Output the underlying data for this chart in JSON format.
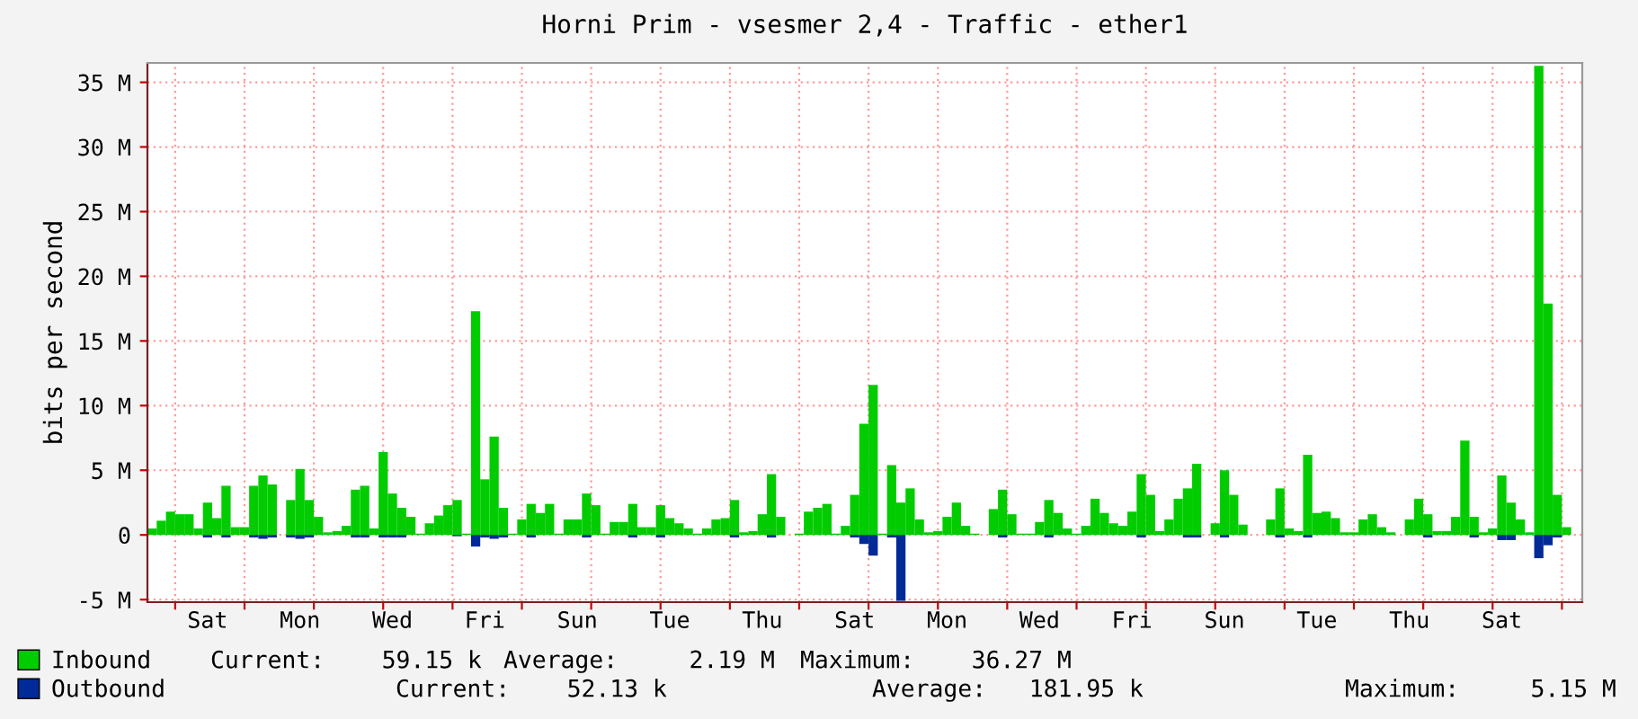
{
  "chart_data": {
    "type": "bar",
    "title": "Horni Prim - vsesmer 2,4 - Traffic - ether1",
    "ylabel": "bits per second",
    "categories": [
      null,
      null,
      null,
      null,
      null,
      null,
      "Sat",
      null,
      null,
      null,
      null,
      null,
      null,
      null,
      null,
      null,
      "Mon",
      null,
      null,
      null,
      null,
      null,
      null,
      null,
      null,
      null,
      "Wed",
      null,
      null,
      null,
      null,
      null,
      null,
      null,
      null,
      null,
      "Fri",
      null,
      null,
      null,
      null,
      null,
      null,
      null,
      null,
      null,
      "Sun",
      null,
      null,
      null,
      null,
      null,
      null,
      null,
      null,
      null,
      "Tue",
      null,
      null,
      null,
      null,
      null,
      null,
      null,
      null,
      null,
      "Thu",
      null,
      null,
      null,
      null,
      null,
      null,
      null,
      null,
      null,
      "Sat",
      null,
      null,
      null,
      null,
      null,
      null,
      null,
      null,
      null,
      "Mon",
      null,
      null,
      null,
      null,
      null,
      null,
      null,
      null,
      null,
      "Wed",
      null,
      null,
      null,
      null,
      null,
      null,
      null,
      null,
      null,
      "Fri",
      null,
      null,
      null,
      null,
      null,
      null,
      null,
      null,
      null,
      "Sun",
      null,
      null,
      null,
      null,
      null,
      null,
      null,
      null,
      null,
      "Tue",
      null,
      null,
      null,
      null,
      null,
      null,
      null,
      null,
      null,
      "Thu",
      null,
      null,
      null,
      null,
      null,
      null,
      null,
      null,
      null,
      "Sat",
      null,
      null,
      null,
      null,
      null,
      null,
      null
    ],
    "series": [
      {
        "name": "Inbound",
        "color": "#00cc00",
        "values": [
          0.5,
          1.1,
          1.8,
          1.6,
          1.6,
          0.5,
          2.5,
          1.3,
          3.8,
          0.6,
          0.6,
          3.8,
          4.6,
          3.9,
          0,
          2.7,
          5.1,
          2.7,
          1.4,
          0.2,
          0.3,
          0.7,
          3.5,
          3.8,
          0.5,
          6.4,
          3.2,
          2.1,
          1.4,
          0.1,
          0.9,
          1.5,
          2.3,
          2.7,
          0.1,
          17.3,
          4.3,
          7.6,
          2.1,
          0.1,
          1.2,
          2.4,
          1.7,
          2.4,
          0.1,
          1.2,
          1.2,
          3.2,
          2.3,
          0.1,
          1.0,
          1.0,
          2.4,
          0.6,
          0.6,
          2.3,
          1.3,
          0.9,
          0.5,
          0.1,
          0.5,
          1.2,
          1.3,
          2.7,
          0.2,
          0.3,
          1.6,
          4.7,
          1.4,
          0,
          0.1,
          1.8,
          2.1,
          2.4,
          0.1,
          0.7,
          3.1,
          8.6,
          11.6,
          0.1,
          5.4,
          2.5,
          3.6,
          1.2,
          0.2,
          0.3,
          1.4,
          2.5,
          0.7,
          0.1,
          0,
          2.0,
          3.5,
          1.6,
          0.1,
          0.1,
          1.0,
          2.7,
          1.7,
          0.5,
          0.1,
          0.7,
          2.8,
          1.7,
          0.9,
          0.7,
          1.8,
          4.7,
          3.1,
          0.3,
          1.2,
          2.8,
          3.6,
          5.5,
          0,
          0.9,
          5.0,
          3.1,
          0.8,
          0,
          0,
          1.2,
          3.6,
          0.5,
          0.3,
          6.2,
          1.7,
          1.8,
          1.3,
          0.2,
          0.2,
          1.2,
          1.6,
          0.6,
          0.2,
          0,
          1.2,
          2.8,
          1.6,
          0.3,
          0.3,
          1.4,
          7.3,
          1.4,
          0.2,
          0.5,
          4.6,
          2.5,
          1.2,
          0.2,
          36.27,
          17.9,
          3.1,
          0.6
        ]
      },
      {
        "name": "Outbound",
        "color": "#002a97",
        "values": [
          0,
          0,
          0,
          0,
          0,
          0,
          -0.2,
          0,
          -0.2,
          0,
          0,
          -0.2,
          -0.3,
          -0.2,
          0,
          -0.2,
          -0.3,
          -0.2,
          0,
          0,
          0,
          0,
          -0.2,
          -0.2,
          0,
          -0.2,
          -0.2,
          -0.2,
          0,
          0,
          0,
          0,
          0,
          -0.1,
          0,
          -0.9,
          -0.2,
          -0.3,
          -0.2,
          0,
          0,
          -0.2,
          0,
          0,
          0,
          0,
          0,
          -0.2,
          0,
          0,
          0,
          0,
          -0.2,
          0,
          0,
          -0.2,
          0,
          0,
          0,
          0,
          0,
          0,
          0,
          -0.2,
          0,
          0,
          0,
          -0.2,
          0,
          0,
          0,
          0,
          0,
          0,
          0,
          0,
          -0.2,
          -0.7,
          -1.6,
          0,
          -0.2,
          -5.1,
          0,
          0,
          0,
          0,
          0,
          0,
          0,
          0,
          0,
          0,
          -0.2,
          0,
          0,
          0,
          0,
          -0.2,
          0,
          0,
          0,
          0,
          0,
          0,
          0,
          0,
          0,
          -0.2,
          0,
          0,
          0,
          0,
          -0.2,
          -0.2,
          0,
          0,
          -0.2,
          0,
          0,
          0,
          0,
          0,
          -0.2,
          0,
          0,
          -0.2,
          0,
          0,
          0,
          0,
          0,
          0,
          0,
          0,
          0,
          0,
          0,
          0,
          -0.2,
          0,
          0,
          0,
          0,
          -0.2,
          0,
          0,
          -0.4,
          -0.4,
          0,
          0,
          -1.8,
          -0.8,
          -0.2,
          0
        ]
      }
    ],
    "ylim": [
      -5.2,
      36.5
    ],
    "yticks": [
      {
        "value": -5,
        "label": "-5 M"
      },
      0,
      {
        "value": 5,
        "label": "5 M"
      },
      {
        "value": 10,
        "label": "10 M"
      },
      {
        "value": 15,
        "label": "15 M"
      },
      {
        "value": 20,
        "label": "20 M"
      },
      {
        "value": 25,
        "label": "25 M"
      },
      {
        "value": 30,
        "label": "30 M"
      },
      {
        "value": 35,
        "label": "35 M"
      }
    ],
    "grid": true,
    "legend": "bottom",
    "annotations": [
      "Current:    59.15 k",
      "Average:     2.19 M",
      "Maximum:    36.27 M",
      "Current:    52.13 k",
      "Average:   181.95 k",
      "Maximum:     5.15 M"
    ]
  }
}
